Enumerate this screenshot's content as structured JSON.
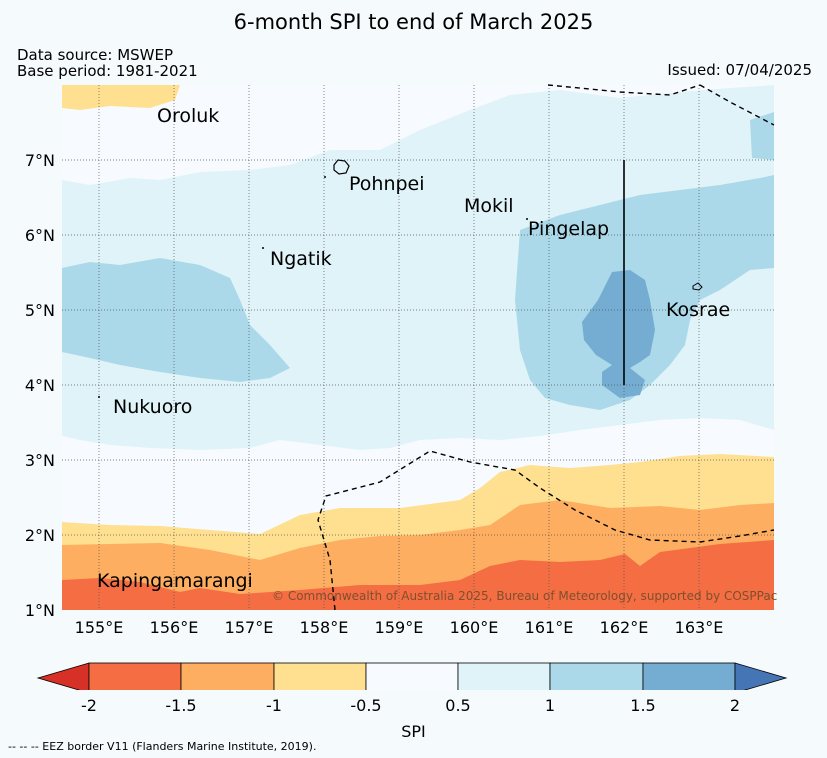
{
  "title": "6-month SPI to end of March 2025",
  "data_source": "Data source: MSWEP",
  "base_period": "Base period: 1981-2021",
  "issued": "Issued: 07/04/2025",
  "colors": {
    "spi_lt_-2": "#d73027",
    "spi_-2_-1.5": "#f46d43",
    "spi_-1.5_-1": "#fdae61",
    "spi_-1_-0.5": "#fee090",
    "spi_-0.5_0.5": "#f7fbff",
    "spi_0.5_1": "#e0f3f8",
    "spi_1_1.5": "#abd9e9",
    "spi_1.5_2": "#74add1",
    "spi_gt_2": "#4575b4"
  },
  "map": {
    "latitude_labels": [
      "1°N",
      "2°N",
      "3°N",
      "4°N",
      "5°N",
      "6°N",
      "7°N"
    ],
    "longitude_labels": [
      "155°E",
      "156°E",
      "157°E",
      "158°E",
      "159°E",
      "160°E",
      "161°E",
      "162°E",
      "163°E"
    ],
    "places": {
      "oroluk": "Oroluk",
      "pohnpei": "Pohnpei",
      "mokil": "Mokil",
      "pingelap": "Pingelap",
      "ngatik": "Ngatik",
      "kosrae": "Kosrae",
      "nukuoro": "Nukuoro",
      "kapingamarangi": "Kapingamarangi"
    },
    "copyright": "© Commonwealth of Australia 2025, Bureau of Meteorology, supported by COSPPac"
  },
  "colorbar": {
    "ticks": [
      "-2",
      "-1.5",
      "-1",
      "-0.5",
      "0.5",
      "1",
      "1.5",
      "2"
    ],
    "label": "SPI"
  },
  "footnote": "-- -- -- EEZ border V11 (Flanders Marine Institute, 2019)."
}
